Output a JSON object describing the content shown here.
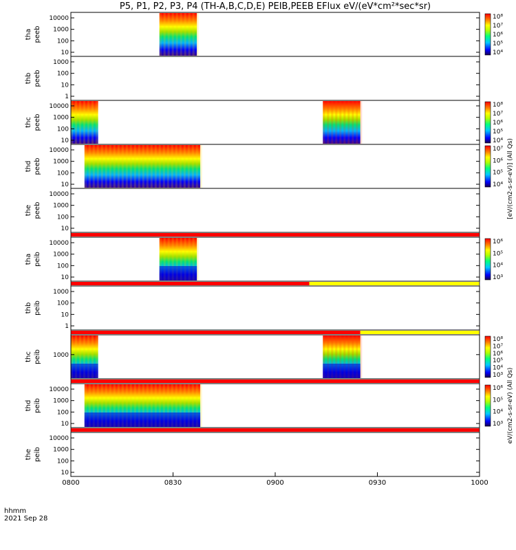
{
  "title": "P5, P1, P2, P3, P4 (TH-A,B,C,D,E) PEIB,PEEB EFlux eV/(eV*cm²*sec*sr)",
  "x_axis": {
    "label_line1": "hhmm",
    "label_line2": "2021 Sep 28",
    "ticks": [
      "0800",
      "0830",
      "0900",
      "0930",
      "1000"
    ]
  },
  "colorbar_label_electron": "[eV/(cm2-s-sr-eV)] (All Qs)",
  "colorbar_label_ion": "eV/(cm2-s-sr-eV) (All Qs)",
  "colors": {
    "status_bar_red": "#ff0000",
    "status_bar_yellow": "#ffff00",
    "background": "#ffffff"
  },
  "chart_data": {
    "type": "heatmap",
    "x_range": [
      "08:00",
      "10:00"
    ],
    "panels": [
      {
        "id": "tha-peeb",
        "label": [
          "tha",
          "peeb"
        ],
        "yscale": "log",
        "yticks": [
          "10",
          "100",
          "1000",
          "10000"
        ],
        "colorbar": {
          "ticks": [
            "10⁴",
            "10⁵",
            "10⁶",
            "10⁷",
            "10⁸"
          ]
        },
        "data_intervals": [
          [
            "08:26",
            "08:37"
          ]
        ],
        "coverage": "full",
        "status_bar": []
      },
      {
        "id": "thb-peeb",
        "label": [
          "thb",
          "peeb"
        ],
        "yscale": "log",
        "yticks": [
          "1",
          "10",
          "100",
          "1000"
        ],
        "colorbar": null,
        "data_intervals": [],
        "status_bar": []
      },
      {
        "id": "thc-peeb",
        "label": [
          "thc",
          "peeb"
        ],
        "yscale": "log",
        "yticks": [
          "10",
          "100",
          "1000",
          "10000"
        ],
        "colorbar": {
          "ticks": [
            "10⁴",
            "10⁵",
            "10⁶",
            "10⁷",
            "10⁸"
          ]
        },
        "data_intervals": [
          [
            "08:00",
            "08:08"
          ],
          [
            "09:14",
            "09:25"
          ]
        ],
        "coverage": "full",
        "status_bar": []
      },
      {
        "id": "thd-peeb",
        "label": [
          "thd",
          "peeb"
        ],
        "yscale": "log",
        "yticks": [
          "10",
          "100",
          "1000",
          "10000"
        ],
        "colorbar": {
          "ticks": [
            "10⁴",
            "10⁵",
            "10⁶",
            "10⁷"
          ]
        },
        "data_intervals": [
          [
            "08:04",
            "08:38"
          ]
        ],
        "coverage": "full",
        "status_bar": []
      },
      {
        "id": "the-peeb",
        "label": [
          "the",
          "peeb"
        ],
        "yscale": "log",
        "yticks": [
          "10",
          "100",
          "1000",
          "10000"
        ],
        "colorbar": null,
        "data_intervals": [],
        "status_bar": [
          [
            "08:00",
            "10:00",
            "red"
          ]
        ]
      },
      {
        "id": "tha-peib",
        "label": [
          "tha",
          "peib"
        ],
        "yscale": "log",
        "yticks": [
          "10",
          "100",
          "1000",
          "10000"
        ],
        "colorbar": {
          "ticks": [
            "10³",
            "10⁴",
            "10⁵",
            "10⁶"
          ]
        },
        "data_intervals": [
          [
            "08:26",
            "08:37"
          ]
        ],
        "coverage": "ion",
        "status_bar": [
          [
            "08:00",
            "09:10",
            "red"
          ],
          [
            "09:10",
            "10:00",
            "yellow"
          ]
        ]
      },
      {
        "id": "thb-peib",
        "label": [
          "thb",
          "peib"
        ],
        "yscale": "log",
        "yticks": [
          "1",
          "10",
          "100",
          "1000"
        ],
        "colorbar": null,
        "data_intervals": [],
        "status_bar": [
          [
            "08:00",
            "09:25",
            "red"
          ],
          [
            "09:25",
            "10:00",
            "yellow"
          ]
        ]
      },
      {
        "id": "thc-peib",
        "label": [
          "thc",
          "peib"
        ],
        "yscale": "log",
        "yticks": [
          "1000"
        ],
        "colorbar": {
          "ticks": [
            "10³",
            "10⁴",
            "10⁵",
            "10⁶",
            "10⁷",
            "10⁸"
          ]
        },
        "data_intervals": [
          [
            "08:00",
            "08:08"
          ],
          [
            "09:14",
            "09:25"
          ]
        ],
        "coverage": "ion",
        "status_bar": [
          [
            "08:00",
            "10:00",
            "red"
          ]
        ]
      },
      {
        "id": "thd-peib",
        "label": [
          "thd",
          "peib"
        ],
        "yscale": "log",
        "yticks": [
          "10",
          "100",
          "1000",
          "10000"
        ],
        "colorbar": {
          "ticks": [
            "10³",
            "10⁴",
            "10⁵",
            "10⁶"
          ]
        },
        "data_intervals": [
          [
            "08:04",
            "08:38"
          ]
        ],
        "coverage": "ion",
        "status_bar": [
          [
            "08:00",
            "10:00",
            "red"
          ]
        ]
      },
      {
        "id": "the-peib",
        "label": [
          "the",
          "peib"
        ],
        "yscale": "log",
        "yticks": [
          "10",
          "100",
          "1000",
          "10000"
        ],
        "colorbar": null,
        "data_intervals": [],
        "status_bar": []
      }
    ]
  }
}
